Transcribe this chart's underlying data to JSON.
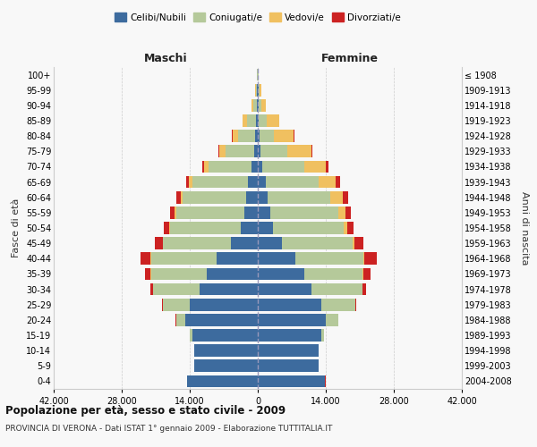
{
  "age_groups": [
    "0-4",
    "5-9",
    "10-14",
    "15-19",
    "20-24",
    "25-29",
    "30-34",
    "35-39",
    "40-44",
    "45-49",
    "50-54",
    "55-59",
    "60-64",
    "65-69",
    "70-74",
    "75-79",
    "80-84",
    "85-89",
    "90-94",
    "95-99",
    "100+"
  ],
  "birth_years": [
    "2004-2008",
    "1999-2003",
    "1994-1998",
    "1989-1993",
    "1984-1988",
    "1979-1983",
    "1974-1978",
    "1969-1973",
    "1964-1968",
    "1959-1963",
    "1954-1958",
    "1949-1953",
    "1944-1948",
    "1939-1943",
    "1934-1938",
    "1929-1933",
    "1924-1928",
    "1919-1923",
    "1914-1918",
    "1909-1913",
    "≤ 1908"
  ],
  "maschi_celibi": [
    14500,
    13000,
    13000,
    13500,
    15000,
    14000,
    12000,
    10500,
    8500,
    5500,
    3500,
    2800,
    2400,
    2000,
    1200,
    700,
    500,
    300,
    200,
    120,
    50
  ],
  "maschi_coniugati": [
    100,
    100,
    50,
    500,
    1800,
    5500,
    9500,
    11500,
    13500,
    14000,
    14500,
    14000,
    13000,
    11500,
    9000,
    6000,
    3500,
    2000,
    700,
    300,
    80
  ],
  "maschi_vedovi": [
    5,
    5,
    5,
    10,
    20,
    50,
    50,
    80,
    100,
    100,
    200,
    300,
    500,
    600,
    800,
    1200,
    1200,
    800,
    300,
    80,
    20
  ],
  "maschi_divorziati": [
    5,
    5,
    5,
    10,
    50,
    200,
    600,
    1200,
    2000,
    1500,
    1100,
    1000,
    900,
    700,
    400,
    200,
    100,
    50,
    20,
    10,
    5
  ],
  "femmine_celibi": [
    13800,
    12500,
    12500,
    13000,
    14000,
    13000,
    11000,
    9500,
    7800,
    5000,
    3200,
    2500,
    2000,
    1600,
    1000,
    600,
    400,
    250,
    150,
    100,
    50
  ],
  "femmine_coniugate": [
    100,
    100,
    80,
    600,
    2500,
    7000,
    10500,
    12000,
    14000,
    14500,
    14500,
    14000,
    13000,
    11000,
    8500,
    5500,
    3000,
    1600,
    600,
    250,
    60
  ],
  "femmine_vedove": [
    5,
    5,
    5,
    10,
    30,
    80,
    100,
    150,
    200,
    400,
    800,
    1500,
    2500,
    3500,
    4500,
    5000,
    4000,
    2500,
    900,
    300,
    50
  ],
  "femmine_divorziate": [
    5,
    5,
    5,
    15,
    60,
    250,
    700,
    1500,
    2500,
    1800,
    1300,
    1200,
    1100,
    800,
    500,
    200,
    100,
    50,
    20,
    10,
    5
  ],
  "colors": {
    "celibi": "#3d6b9e",
    "coniugati": "#b5c99a",
    "vedovi": "#f0c060",
    "divorziati": "#cc2222"
  },
  "xlim": 42000,
  "title": "Popolazione per età, sesso e stato civile - 2009",
  "subtitle": "PROVINCIA DI VERONA - Dati ISTAT 1° gennaio 2009 - Elaborazione TUTTITALIA.IT",
  "xlabel_left": "Maschi",
  "xlabel_right": "Femmine",
  "ylabel_left": "Fasce di età",
  "ylabel_right": "Anni di nascita",
  "xticks": [
    -42000,
    -28000,
    -14000,
    0,
    14000,
    28000,
    42000
  ],
  "xtick_labels": [
    "42.000",
    "28.000",
    "14.000",
    "0",
    "14.000",
    "28.000",
    "42.000"
  ]
}
